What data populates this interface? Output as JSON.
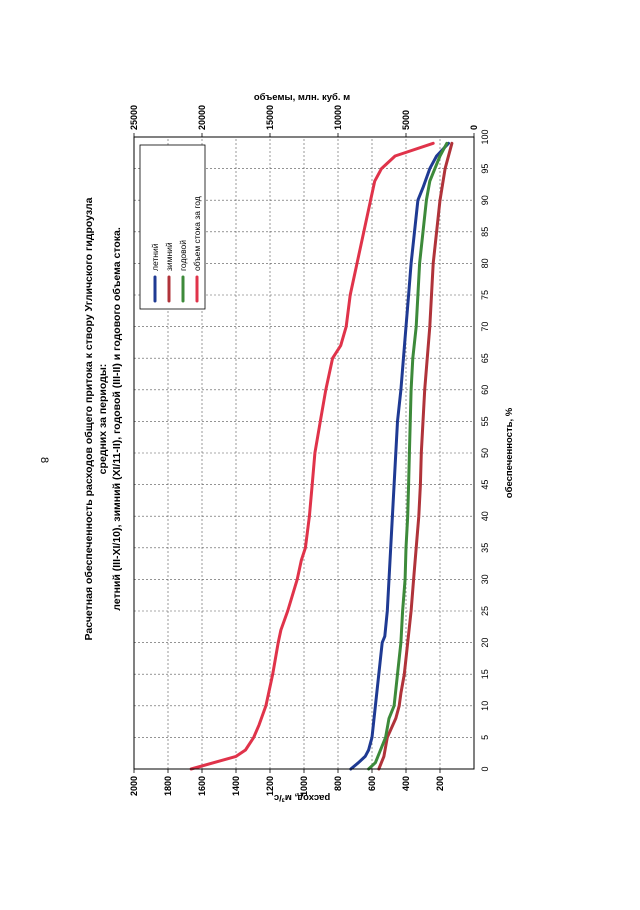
{
  "page": {
    "page_number": "8"
  },
  "colors": {
    "summer": "#1f3a93",
    "winter": "#b0333a",
    "annual": "#3d8a3a",
    "volume": "#e0334a",
    "grid": "#555555",
    "frame": "#000000"
  },
  "chart_data": {
    "type": "line",
    "title": "Расчетная обеспеченность расходов общего притока к створу Угличского гидроузла",
    "subtitle1": "средних за периоды:",
    "subtitle2": "летний (III-XI/10),  зимний (XI/11-II), годовой (III-II)  и годового объема стока.",
    "xlabel": "обеспеченность, %",
    "ylabel": "расход, м³/с",
    "ylabel2": "объемы, млн. куб. м",
    "xlim": [
      0,
      100
    ],
    "ylim": [
      0,
      2000
    ],
    "ylim2": [
      0,
      25000
    ],
    "x_ticks": [
      "0",
      "5",
      "10",
      "15",
      "20",
      "25",
      "30",
      "35",
      "40",
      "45",
      "50",
      "55",
      "60",
      "65",
      "70",
      "75",
      "80",
      "85",
      "90",
      "95",
      "100"
    ],
    "y_ticks": [
      "200",
      "400",
      "600",
      "800",
      "1000",
      "1200",
      "1400",
      "1600",
      "1800",
      "2000"
    ],
    "y2_ticks": [
      "0",
      "5000",
      "10000",
      "15000",
      "20000",
      "25000"
    ],
    "legend": [
      "летний",
      "зимний",
      "годовой",
      "объем стока за год"
    ],
    "series": [
      {
        "name": "летний",
        "color_key": "summer",
        "x": [
          0,
          1,
          2,
          3,
          5,
          10,
          15,
          20,
          21,
          25,
          30,
          40,
          50,
          55,
          60,
          70,
          75,
          80,
          85,
          90,
          92,
          95,
          97,
          99
        ],
        "y": [
          725,
          680,
          640,
          620,
          600,
          580,
          560,
          540,
          525,
          510,
          500,
          480,
          460,
          450,
          430,
          400,
          385,
          370,
          350,
          330,
          300,
          260,
          220,
          150
        ]
      },
      {
        "name": "зимний",
        "color_key": "winter",
        "x": [
          0,
          2,
          5,
          8,
          10,
          12,
          15,
          20,
          25,
          30,
          35,
          40,
          45,
          50,
          60,
          70,
          80,
          90,
          95,
          99
        ],
        "y": [
          560,
          530,
          510,
          460,
          440,
          430,
          410,
          390,
          370,
          355,
          340,
          325,
          315,
          310,
          290,
          260,
          240,
          200,
          170,
          130
        ]
      },
      {
        "name": "годовой",
        "color_key": "annual",
        "x": [
          0,
          1,
          3,
          5,
          8,
          10,
          15,
          20,
          25,
          30,
          35,
          40,
          45,
          50,
          60,
          65,
          70,
          75,
          80,
          85,
          90,
          93,
          95,
          97,
          99
        ],
        "y": [
          620,
          580,
          550,
          520,
          500,
          470,
          450,
          430,
          420,
          405,
          400,
          390,
          385,
          380,
          370,
          360,
          340,
          330,
          320,
          300,
          280,
          260,
          230,
          200,
          160
        ]
      },
      {
        "name": "объем стока за год",
        "color_key": "volume",
        "x": [
          0,
          2,
          3,
          5,
          7,
          10,
          15,
          20,
          22,
          25,
          30,
          33,
          35,
          40,
          45,
          50,
          55,
          60,
          65,
          67,
          70,
          75,
          80,
          85,
          90,
          93,
          95,
          97,
          99
        ],
        "y": [
          20800,
          17500,
          16800,
          16200,
          15800,
          15300,
          14800,
          14400,
          14200,
          13700,
          13000,
          12700,
          12400,
          12100,
          11900,
          11700,
          11300,
          10900,
          10400,
          9800,
          9400,
          9100,
          8600,
          8100,
          7600,
          7300,
          6800,
          5800,
          3000
        ]
      }
    ]
  }
}
